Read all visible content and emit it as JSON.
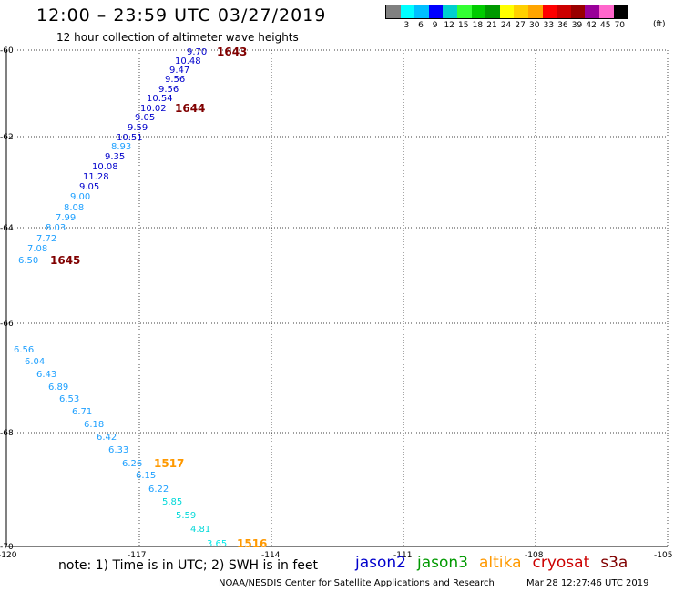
{
  "header": {
    "title": "12:00 – 23:59 UTC 03/27/2019",
    "subtitle": "12 hour collection of altimeter wave heights"
  },
  "color_scale": {
    "unit": "(ft)",
    "labels": [
      "",
      "3",
      "6",
      "9",
      "12",
      "15",
      "18",
      "21",
      "24",
      "27",
      "30",
      "33",
      "36",
      "39",
      "42",
      "45",
      "70"
    ],
    "colors": [
      "#808080",
      "#00ffff",
      "#00bfff",
      "#0000ff",
      "#00cfcf",
      "#33ff33",
      "#00cc00",
      "#009900",
      "#ffff00",
      "#ffd000",
      "#ffa500",
      "#ff0000",
      "#cc0000",
      "#990000",
      "#990099",
      "#ff66cc",
      "#000000"
    ]
  },
  "map": {
    "lon_labels": [
      "-120",
      "-117",
      "-114",
      "-111",
      "-108",
      "-105"
    ],
    "lat_labels": [
      "-60",
      "-62",
      "-64",
      "-66",
      "-68",
      "-70"
    ],
    "observations": [
      {
        "value": "9.70",
        "color": "#0000cc"
      },
      {
        "value": "10.48",
        "color": "#0000cc"
      },
      {
        "value": "9.47",
        "color": "#0000cc"
      },
      {
        "value": "9.56",
        "color": "#0000cc"
      },
      {
        "value": "9.56",
        "color": "#0000cc"
      },
      {
        "value": "10.54",
        "color": "#0000cc"
      },
      {
        "value": "10.02",
        "color": "#0000cc"
      },
      {
        "value": "9.05",
        "color": "#0000cc"
      },
      {
        "value": "9.59",
        "color": "#0000cc"
      },
      {
        "value": "10.51",
        "color": "#0000cc"
      },
      {
        "value": "8.93",
        "color": "#1ea0ff"
      },
      {
        "value": "9.35",
        "color": "#0000cc"
      },
      {
        "value": "10.08",
        "color": "#0000cc"
      },
      {
        "value": "11.28",
        "color": "#0000cc"
      },
      {
        "value": "9.05",
        "color": "#0000cc"
      },
      {
        "value": "9.00",
        "color": "#1ea0ff"
      },
      {
        "value": "8.08",
        "color": "#1ea0ff"
      },
      {
        "value": "7.99",
        "color": "#1ea0ff"
      },
      {
        "value": "8.03",
        "color": "#1ea0ff"
      },
      {
        "value": "7.72",
        "color": "#1ea0ff"
      },
      {
        "value": "7.08",
        "color": "#1ea0ff"
      },
      {
        "value": "6.50",
        "color": "#1ea0ff"
      },
      {
        "value": "6.56",
        "color": "#1ea0ff"
      },
      {
        "value": "6.04",
        "color": "#1ea0ff"
      },
      {
        "value": "6.43",
        "color": "#1ea0ff"
      },
      {
        "value": "6.89",
        "color": "#1ea0ff"
      },
      {
        "value": "6.53",
        "color": "#1ea0ff"
      },
      {
        "value": "6.71",
        "color": "#1ea0ff"
      },
      {
        "value": "6.18",
        "color": "#1ea0ff"
      },
      {
        "value": "6.42",
        "color": "#1ea0ff"
      },
      {
        "value": "6.33",
        "color": "#1ea0ff"
      },
      {
        "value": "6.26",
        "color": "#1ea0ff"
      },
      {
        "value": "6.15",
        "color": "#1ea0ff"
      },
      {
        "value": "6.22",
        "color": "#1ea0ff"
      },
      {
        "value": "5.85",
        "color": "#00d8d8"
      },
      {
        "value": "5.59",
        "color": "#00d8d8"
      },
      {
        "value": "4.81",
        "color": "#00d8d8"
      },
      {
        "value": "3.65",
        "color": "#00e8e8"
      }
    ],
    "time_labels": [
      {
        "value": "1643",
        "color": "#800000"
      },
      {
        "value": "1644",
        "color": "#800000"
      },
      {
        "value": "1645",
        "color": "#800000"
      },
      {
        "value": "1517",
        "color": "#ff9900"
      },
      {
        "value": "1516",
        "color": "#ff9900"
      }
    ]
  },
  "footer": {
    "note": "note: 1) Time is in UTC; 2) SWH is in feet",
    "satellites": [
      {
        "name": "jason2",
        "color": "#0000cc"
      },
      {
        "name": "jason3",
        "color": "#009900"
      },
      {
        "name": "altika",
        "color": "#ff9900"
      },
      {
        "name": "cryosat",
        "color": "#cc0000"
      },
      {
        "name": "s3a",
        "color": "#800000"
      }
    ],
    "credit": "NOAA/NESDIS Center for Satellite Applications and Research",
    "generated": "Mar 28 12:27:46 UTC 2019"
  }
}
